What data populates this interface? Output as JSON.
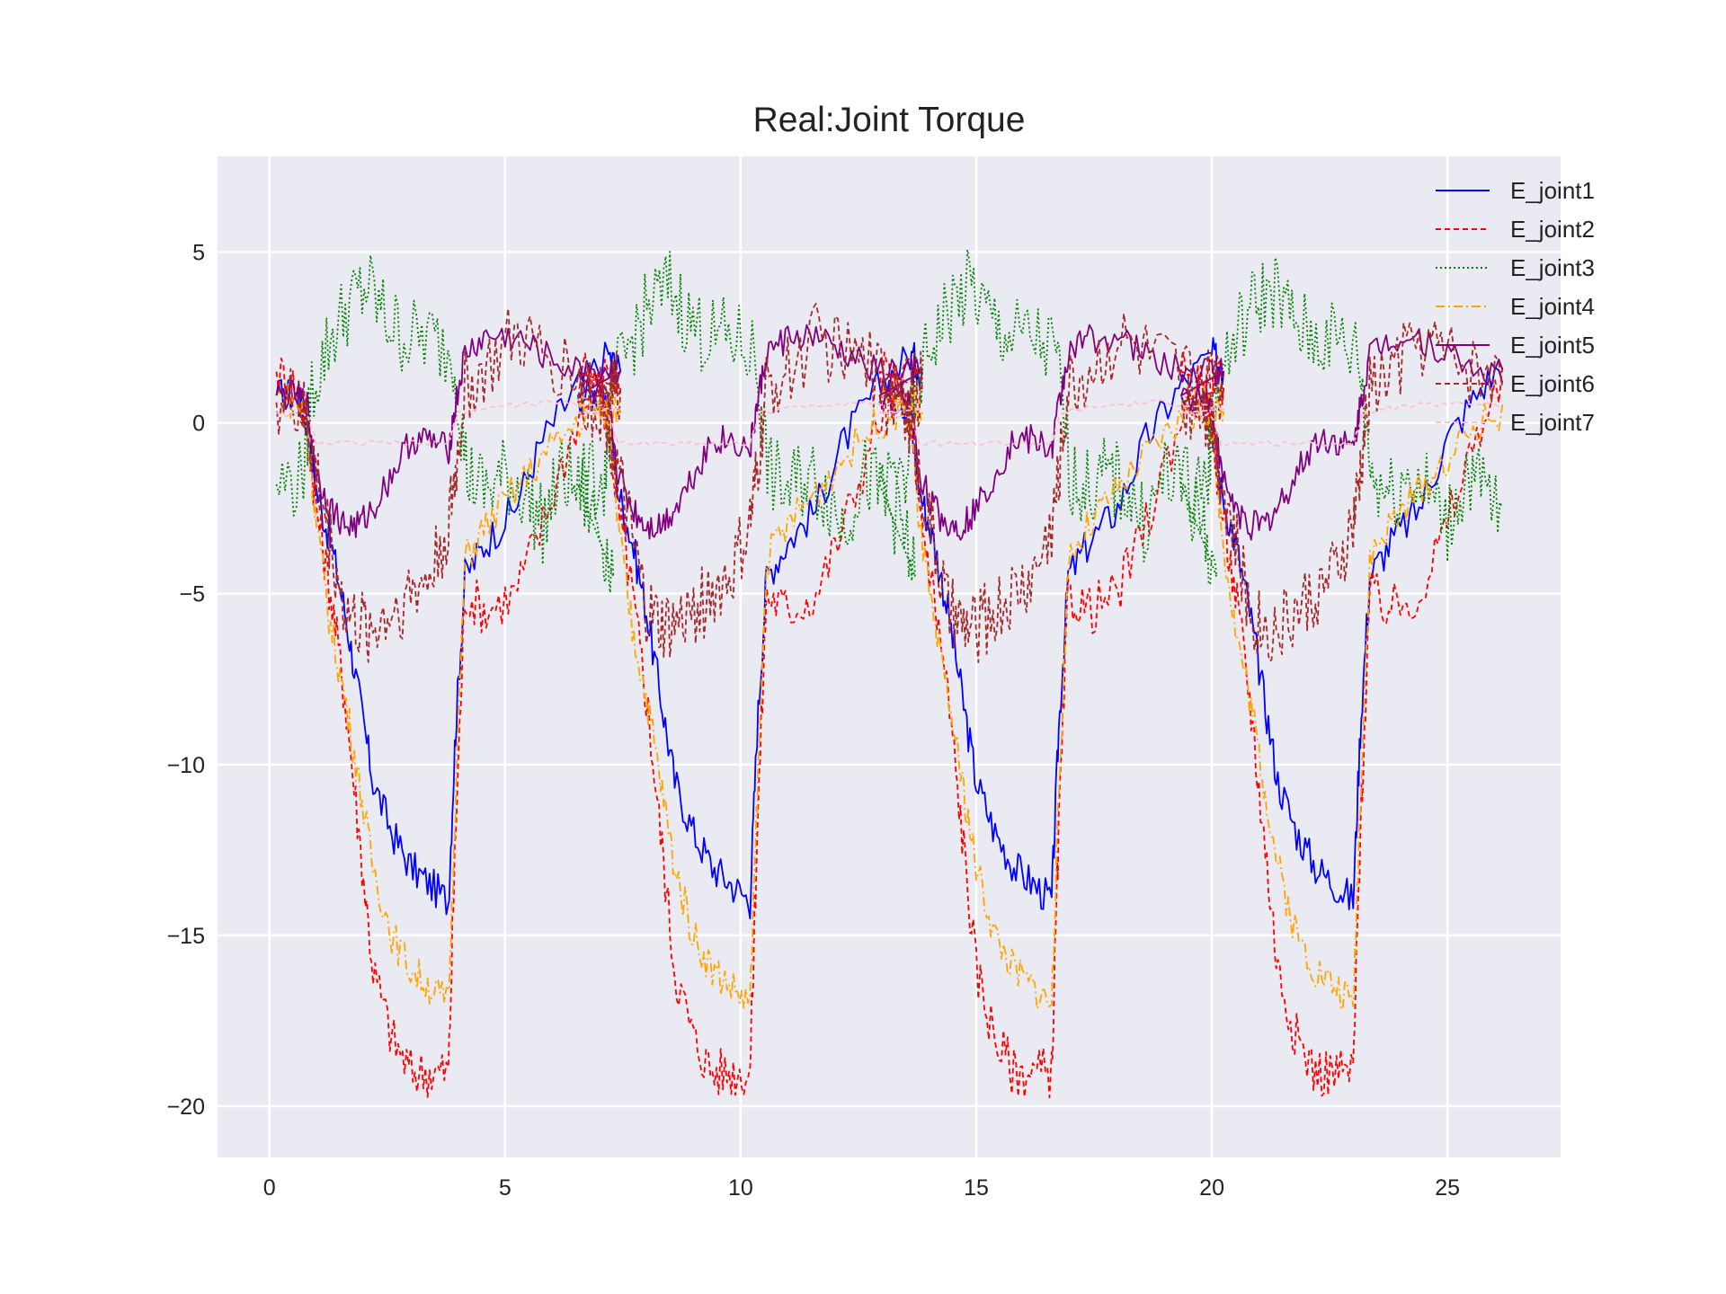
{
  "chart_data": {
    "type": "line",
    "title": "Real:Joint Torque",
    "xlabel": "",
    "ylabel": "",
    "xlim": [
      -1.1,
      27.4
    ],
    "ylim": [
      -21.5,
      7.8
    ],
    "xticks": [
      0,
      5,
      10,
      15,
      20,
      25
    ],
    "yticks": [
      5,
      0,
      -5,
      -10,
      -15,
      -20
    ],
    "xtick_labels": [
      "0",
      "5",
      "10",
      "15",
      "20",
      "25"
    ],
    "ytick_labels": [
      "5",
      "0",
      "−5",
      "−10",
      "−15",
      "−20"
    ],
    "grid": true,
    "background": "#eaeaf2",
    "legend_position": "top-right",
    "cycle_period": 6.4,
    "series": [
      {
        "name": "E_joint1",
        "color": "#0000ff",
        "dash": "",
        "x": [
          0.15,
          0.6,
          0.8,
          1.0,
          1.3,
          1.6,
          1.9,
          2.2,
          2.6,
          3.0,
          3.4,
          3.8,
          3.95,
          4.15,
          4.6,
          5.2,
          5.8,
          6.5,
          7.2,
          7.45
        ],
        "y": [
          0.8,
          0.8,
          0.0,
          -2.0,
          -3.5,
          -5.5,
          -8.0,
          -10.5,
          -12.0,
          -13.0,
          -13.5,
          -14.0,
          -9.0,
          -4.5,
          -3.5,
          -2.5,
          -0.5,
          1.0,
          2.0,
          1.5
        ]
      },
      {
        "name": "E_joint2",
        "color": "#ff0000",
        "dash": "6,4",
        "x": [
          0.15,
          0.6,
          0.8,
          1.0,
          1.3,
          1.6,
          1.9,
          2.2,
          2.6,
          3.0,
          3.4,
          3.8,
          3.95,
          4.15,
          4.6,
          5.2,
          5.8,
          6.5,
          7.2,
          7.45
        ],
        "y": [
          1.5,
          1.0,
          0.0,
          -2.5,
          -5.0,
          -8.0,
          -12.0,
          -16.0,
          -18.0,
          -19.0,
          -19.0,
          -19.0,
          -12.0,
          -5.0,
          -5.5,
          -5.0,
          -3.0,
          0.0,
          1.5,
          1.0
        ]
      },
      {
        "name": "E_joint3",
        "color": "#008000",
        "dash": "2,3",
        "x": [
          0.15,
          0.7,
          0.9,
          1.3,
          1.7,
          2.1,
          2.5,
          2.9,
          3.4,
          3.9,
          4.2,
          4.6,
          5.0,
          5.4,
          5.8,
          6.2,
          6.6,
          7.0,
          7.3
        ],
        "y": [
          -1.8,
          -1.6,
          1.0,
          2.5,
          3.5,
          4.0,
          3.0,
          2.5,
          2.5,
          2.0,
          -1.5,
          -2.0,
          -1.5,
          -2.0,
          -3.0,
          -1.5,
          -2.0,
          -3.0,
          -4.5
        ]
      },
      {
        "name": "E_joint4",
        "color": "#ffa500",
        "dash": "10,4,2,4",
        "x": [
          0.15,
          0.6,
          0.8,
          1.0,
          1.3,
          1.6,
          1.9,
          2.2,
          2.6,
          3.0,
          3.4,
          3.8,
          3.95,
          4.15,
          4.6,
          5.2,
          5.8,
          6.5,
          7.2,
          7.45
        ],
        "y": [
          0.8,
          0.6,
          0.0,
          -3.0,
          -6.0,
          -8.0,
          -10.5,
          -13.0,
          -15.0,
          -16.0,
          -16.5,
          -17.0,
          -11.0,
          -4.0,
          -3.0,
          -2.0,
          -1.0,
          0.0,
          0.5,
          0.3
        ]
      },
      {
        "name": "E_joint5",
        "color": "#800080",
        "dash": "",
        "x": [
          0.15,
          0.6,
          0.8,
          1.0,
          1.3,
          1.6,
          1.9,
          2.2,
          2.6,
          3.0,
          3.4,
          3.8,
          3.95,
          4.15,
          4.6,
          5.2,
          5.8,
          6.5,
          7.2,
          7.45
        ],
        "y": [
          0.8,
          0.8,
          0.5,
          -1.5,
          -2.5,
          -3.0,
          -3.0,
          -2.5,
          -1.5,
          -0.5,
          -0.5,
          -0.8,
          0.5,
          2.0,
          2.5,
          2.5,
          2.0,
          1.5,
          1.5,
          1.5
        ]
      },
      {
        "name": "E_joint6",
        "color": "#a52a2a",
        "dash": "6,4",
        "x": [
          0.15,
          0.6,
          0.8,
          1.0,
          1.3,
          1.6,
          1.9,
          2.2,
          2.6,
          3.0,
          3.4,
          3.8,
          3.95,
          4.15,
          4.6,
          5.2,
          5.8,
          6.5,
          7.2,
          7.45
        ],
        "y": [
          0.6,
          0.6,
          0.0,
          -1.5,
          -3.5,
          -5.5,
          -6.0,
          -6.0,
          -5.5,
          -5.0,
          -4.5,
          -3.0,
          -1.5,
          1.0,
          1.5,
          2.5,
          2.0,
          1.5,
          1.0,
          1.0
        ]
      },
      {
        "name": "E_joint7",
        "color": "#ffc0cb",
        "dash": "6,4",
        "x": [
          0.15,
          0.8,
          1.0,
          2.0,
          3.0,
          3.8,
          4.0,
          5.0,
          6.0,
          7.0,
          7.45
        ],
        "y": [
          0.3,
          0.2,
          -0.6,
          -0.6,
          -0.6,
          -0.6,
          0.3,
          0.5,
          0.6,
          0.5,
          0.4
        ]
      }
    ]
  }
}
